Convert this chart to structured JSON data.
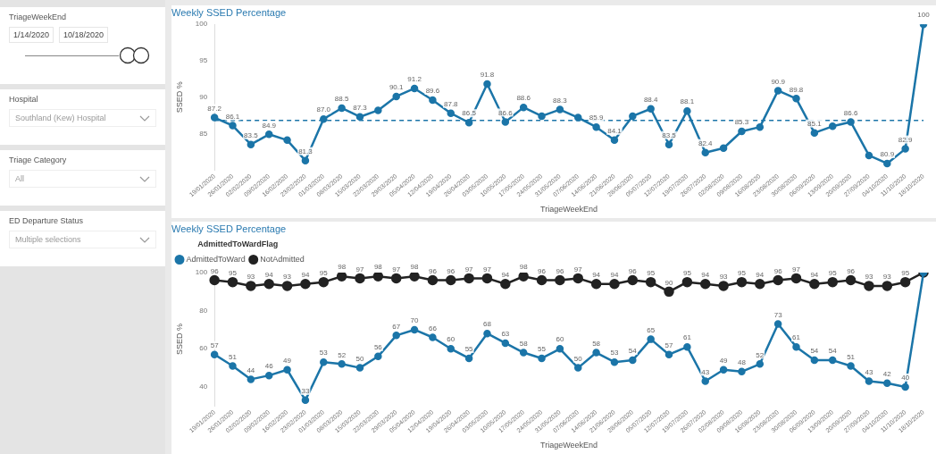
{
  "chart_data": [
    {
      "type": "other",
      "annotations": [
        "TriageWeekEnd",
        "1/14/2020",
        "10/18/2020",
        "Hospital",
        "Southland (Kew) Hospital",
        "Triage Category",
        "All",
        "ED Departure Status",
        "Multiple selections"
      ]
    },
    {
      "type": "line",
      "title": "Weekly SSED Percentage",
      "xlabel": "TriageWeekEnd",
      "ylabel": "SSED %",
      "categories": [
        "19/01/2020",
        "26/01/2020",
        "02/02/2020",
        "09/02/2020",
        "16/02/2020",
        "23/02/2020",
        "01/03/2020",
        "08/03/2020",
        "15/03/2020",
        "22/03/2020",
        "29/03/2020",
        "05/04/2020",
        "12/04/2020",
        "19/04/2020",
        "26/04/2020",
        "03/05/2020",
        "10/05/2020",
        "17/05/2020",
        "24/05/2020",
        "31/05/2020",
        "07/06/2020",
        "14/06/2020",
        "21/06/2020",
        "28/06/2020",
        "05/07/2020",
        "12/07/2020",
        "19/07/2020",
        "26/07/2020",
        "02/08/2020",
        "09/08/2020",
        "16/08/2020",
        "23/08/2020",
        "30/08/2020",
        "06/09/2020",
        "13/09/2020",
        "20/09/2020",
        "27/09/2020",
        "04/10/2020",
        "11/10/2020",
        "18/10/2020"
      ],
      "series": [
        {
          "color": "#1b75a8",
          "values": [
            87.2,
            86.1,
            83.5,
            84.9,
            84.1,
            81.3,
            87.0,
            88.5,
            87.3,
            88.2,
            90.1,
            91.2,
            89.6,
            87.8,
            86.5,
            91.8,
            86.6,
            88.6,
            87.4,
            88.3,
            87.2,
            85.9,
            84.1,
            87.4,
            88.4,
            83.5,
            88.1,
            82.4,
            83.0,
            85.3,
            85.9,
            90.9,
            89.8,
            85.1,
            86.0,
            86.6,
            82.0,
            80.9,
            82.9,
            100
          ],
          "value_labels": [
            "87.2",
            "86.1",
            "83.5",
            "84.9",
            null,
            "81.3",
            "87.0",
            "88.5",
            "87.3",
            null,
            "90.1",
            "91.2",
            "89.6",
            "87.8",
            "86.5",
            "91.8",
            "86.6",
            "88.6",
            null,
            "88.3",
            null,
            "85.9",
            "84.1",
            null,
            "88.4",
            "83.5",
            "88.1",
            "82.4",
            null,
            "85.3",
            null,
            "90.9",
            "89.8",
            "85.1",
            null,
            "86.6",
            null,
            "80.9",
            "82.9",
            "100"
          ]
        }
      ],
      "ylim": [
        80,
        100
      ],
      "yticks": [
        85,
        90,
        95,
        100
      ],
      "ref_lines": [
        {
          "axis": "y",
          "value": 86.8,
          "color": "#1b75a8",
          "line_style": "dashed"
        }
      ],
      "marker": "circle",
      "grid": false,
      "legend": false
    },
    {
      "type": "line",
      "title": "Weekly SSED Percentage",
      "xlabel": "TriageWeekEnd",
      "ylabel": "SSED %",
      "legend_title": "AdmittedToWardFlag",
      "categories": [
        "19/01/2020",
        "26/01/2020",
        "02/02/2020",
        "09/02/2020",
        "16/02/2020",
        "23/02/2020",
        "01/03/2020",
        "08/03/2020",
        "15/03/2020",
        "22/03/2020",
        "29/03/2020",
        "05/04/2020",
        "12/04/2020",
        "19/04/2020",
        "26/04/2020",
        "03/05/2020",
        "10/05/2020",
        "17/05/2020",
        "24/05/2020",
        "31/05/2020",
        "07/06/2020",
        "14/06/2020",
        "21/06/2020",
        "28/06/2020",
        "05/07/2020",
        "12/07/2020",
        "19/07/2020",
        "26/07/2020",
        "02/08/2020",
        "09/08/2020",
        "16/08/2020",
        "23/08/2020",
        "30/08/2020",
        "06/09/2020",
        "13/09/2020",
        "20/09/2020",
        "27/09/2020",
        "04/10/2020",
        "11/10/2020",
        "18/10/2020"
      ],
      "series": [
        {
          "name": "AdmittedToWard",
          "color": "#1b75a8",
          "values": [
            57,
            51,
            44,
            46,
            49,
            33,
            53,
            52,
            50,
            56,
            67,
            70,
            66,
            60,
            55,
            68,
            63,
            58,
            55,
            60,
            50,
            58,
            53,
            54,
            65,
            57,
            61,
            43,
            49,
            48,
            52,
            73,
            61,
            54,
            54,
            51,
            43,
            42,
            40,
            100
          ],
          "value_labels": [
            "57",
            "51",
            "44",
            "46",
            "49",
            "33",
            "53",
            "52",
            "50",
            "56",
            "67",
            "70",
            "66",
            "60",
            "55",
            "68",
            "63",
            "58",
            "55",
            "60",
            "50",
            "58",
            "53",
            "54",
            "65",
            "57",
            "61",
            "43",
            "49",
            "48",
            "52",
            "73",
            "61",
            "54",
            "54",
            "51",
            "43",
            "42",
            "40",
            null
          ]
        },
        {
          "name": "NotAdmitted",
          "color": "#222222",
          "values": [
            96,
            95,
            93,
            94,
            93,
            94,
            95,
            98,
            97,
            98,
            97,
            98,
            96,
            96,
            97,
            97,
            94,
            98,
            96,
            96,
            97,
            94,
            94,
            96,
            95,
            90,
            95,
            94,
            93,
            95,
            94,
            96,
            97,
            94,
            95,
            96,
            93,
            93,
            95,
            100
          ],
          "value_labels": [
            "96",
            "95",
            "93",
            "94",
            "93",
            "94",
            "95",
            "98",
            "97",
            "98",
            "97",
            "98",
            "96",
            "96",
            "97",
            "97",
            "94",
            "98",
            "96",
            "96",
            "97",
            "94",
            "94",
            "96",
            "95",
            "90",
            "95",
            "94",
            "93",
            "95",
            "94",
            "96",
            "97",
            "94",
            "95",
            "96",
            "93",
            "93",
            "95",
            null
          ]
        }
      ],
      "ylim": [
        30,
        100
      ],
      "yticks": [
        40,
        60,
        80,
        100
      ],
      "marker": "circle",
      "grid": false,
      "legend": "top left"
    }
  ]
}
